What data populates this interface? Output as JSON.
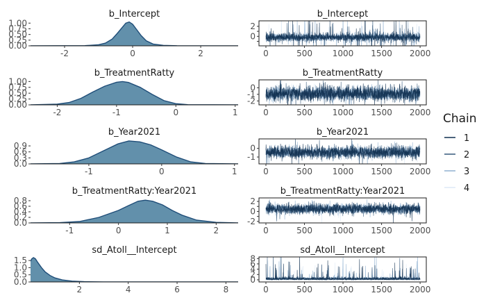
{
  "legend": {
    "title": "Chain",
    "items": [
      {
        "label": "1",
        "color": "#0f2f4f"
      },
      {
        "label": "2",
        "color": "#34587a"
      },
      {
        "label": "3",
        "color": "#8fb0d0"
      },
      {
        "label": "4",
        "color": "#dde9f5"
      }
    ]
  },
  "chart_data": [
    {
      "panel": "density",
      "type": "area",
      "title": "b_Intercept",
      "xlim": [
        -3.0,
        3.1
      ],
      "ylim": [
        0,
        1.1
      ],
      "xticks": [
        -2,
        0,
        2
      ],
      "yticks": [
        0.0,
        0.25,
        0.5,
        0.75,
        1.0
      ],
      "ytick_labels": [
        "0.00",
        "0.25",
        "0.50",
        "0.75",
        "1.00"
      ],
      "x": [
        -3.0,
        -1.4,
        -1.0,
        -0.8,
        -0.6,
        -0.45,
        -0.3,
        -0.2,
        -0.1,
        0.0,
        0.1,
        0.25,
        0.4,
        0.6,
        0.9,
        1.3,
        3.1
      ],
      "y": [
        0.0,
        0.01,
        0.05,
        0.12,
        0.3,
        0.55,
        0.82,
        1.0,
        1.05,
        0.95,
        0.75,
        0.45,
        0.22,
        0.08,
        0.02,
        0.005,
        0.0
      ],
      "fill": "#5a8aa6",
      "line_color": "#1f4d78"
    },
    {
      "panel": "trace",
      "type": "line",
      "title": "b_Intercept",
      "xlim": [
        -90,
        2080
      ],
      "ylim": [
        -1.9,
        3.1
      ],
      "xticks": [
        0,
        500,
        1000,
        1500,
        2000
      ],
      "yticks": [
        -1,
        0,
        1,
        2
      ],
      "ytick_labels": [
        "",
        "0",
        "",
        "2"
      ],
      "center": -0.2,
      "sd": 0.4,
      "spike_prob": 0.05,
      "spike_scale": 2.5,
      "iterations": 2000
    },
    {
      "panel": "density",
      "type": "area",
      "title": "b_TreatmentRatty",
      "xlim": [
        -2.45,
        1.05
      ],
      "ylim": [
        0,
        1.07
      ],
      "xticks": [
        -2,
        -1,
        0,
        1
      ],
      "yticks": [
        0.0,
        0.25,
        0.5,
        0.75,
        1.0
      ],
      "ytick_labels": [
        "0.00",
        "0.25",
        "0.50",
        "0.75",
        "1.00"
      ],
      "x": [
        -2.45,
        -2.0,
        -1.8,
        -1.6,
        -1.4,
        -1.2,
        -1.0,
        -0.9,
        -0.8,
        -0.6,
        -0.4,
        -0.2,
        0.0,
        0.2,
        1.05
      ],
      "y": [
        0.0,
        0.03,
        0.1,
        0.28,
        0.55,
        0.8,
        0.97,
        1.0,
        0.96,
        0.75,
        0.45,
        0.18,
        0.05,
        0.01,
        0.0
      ],
      "fill": "#5a8aa6",
      "line_color": "#1f4d78"
    },
    {
      "panel": "trace",
      "type": "line",
      "title": "b_TreatmentRatty",
      "xlim": [
        -90,
        2080
      ],
      "ylim": [
        -2.6,
        1.2
      ],
      "xticks": [
        0,
        500,
        1000,
        1500,
        2000
      ],
      "yticks": [
        -2,
        -1,
        0
      ],
      "ytick_labels": [
        "-2",
        "-1",
        "0"
      ],
      "center": -0.9,
      "sd": 0.55,
      "spike_prob": 0.01,
      "spike_scale": 1.2,
      "iterations": 2000
    },
    {
      "panel": "density",
      "type": "area",
      "title": "b_Year2021",
      "xlim": [
        -1.8,
        1.05
      ],
      "ylim": [
        0,
        1.25
      ],
      "xticks": [
        -1,
        0,
        1
      ],
      "yticks": [
        0.0,
        0.3,
        0.6,
        0.9
      ],
      "ytick_labels": [
        "0.0",
        "0.3",
        "0.6",
        "0.9"
      ],
      "x": [
        -1.8,
        -1.4,
        -1.2,
        -1.0,
        -0.8,
        -0.6,
        -0.45,
        -0.3,
        -0.15,
        0.0,
        0.2,
        0.4,
        0.6,
        1.05
      ],
      "y": [
        0.0,
        0.02,
        0.1,
        0.3,
        0.65,
        1.0,
        1.15,
        1.1,
        0.95,
        0.7,
        0.35,
        0.1,
        0.02,
        0.0
      ],
      "fill": "#5a8aa6",
      "line_color": "#1f4d78"
    },
    {
      "panel": "trace",
      "type": "line",
      "title": "b_Year2021",
      "xlim": [
        -90,
        2080
      ],
      "ylim": [
        -1.8,
        1.1
      ],
      "xticks": [
        0,
        500,
        1000,
        1500,
        2000
      ],
      "yticks": [
        -1,
        0
      ],
      "ytick_labels": [
        "-1",
        "0"
      ],
      "center": -0.45,
      "sd": 0.35,
      "spike_prob": 0.01,
      "spike_scale": 1.0,
      "iterations": 2000
    },
    {
      "panel": "density",
      "type": "area",
      "title": "b_TreatmentRatty:Year2021",
      "xlim": [
        -1.8,
        2.45
      ],
      "ylim": [
        0,
        0.9
      ],
      "xticks": [
        -1,
        0,
        1,
        2
      ],
      "yticks": [
        0.0,
        0.2,
        0.4,
        0.6,
        0.8
      ],
      "ytick_labels": [
        "0.0",
        "0.2",
        "0.4",
        "0.6",
        "0.8"
      ],
      "x": [
        -1.8,
        -1.2,
        -0.8,
        -0.4,
        0.0,
        0.2,
        0.4,
        0.55,
        0.7,
        0.9,
        1.1,
        1.3,
        1.6,
        2.0,
        2.45
      ],
      "y": [
        0.0,
        0.01,
        0.05,
        0.2,
        0.45,
        0.62,
        0.78,
        0.82,
        0.78,
        0.65,
        0.45,
        0.28,
        0.1,
        0.02,
        0.0
      ],
      "fill": "#5a8aa6",
      "line_color": "#1f4d78"
    },
    {
      "panel": "trace",
      "type": "line",
      "title": "b_TreatmentRatty:Year2021",
      "xlim": [
        -90,
        2080
      ],
      "ylim": [
        -2.3,
        2.7
      ],
      "xticks": [
        0,
        500,
        1000,
        1500,
        2000
      ],
      "yticks": [
        -2,
        -1,
        0,
        1,
        2
      ],
      "ytick_labels": [
        "-2",
        "",
        "0",
        "",
        "2"
      ],
      "center": 0.5,
      "sd": 0.5,
      "spike_prob": 0.01,
      "spike_scale": 1.0,
      "iterations": 2000
    },
    {
      "panel": "density",
      "type": "area",
      "title": "sd_Atoll__Intercept",
      "xlim": [
        0.0,
        8.5
      ],
      "ylim": [
        0,
        1.75
      ],
      "xticks": [
        2,
        4,
        6,
        8
      ],
      "yticks": [
        0.0,
        0.5,
        1.0,
        1.5
      ],
      "ytick_labels": [
        "0.0",
        "0.5",
        "1.0",
        "1.5"
      ],
      "x": [
        0.0,
        0.05,
        0.12,
        0.2,
        0.3,
        0.45,
        0.6,
        0.8,
        1.0,
        1.3,
        1.7,
        2.2,
        3.0,
        4.0,
        8.5
      ],
      "y": [
        1.45,
        1.62,
        1.7,
        1.62,
        1.35,
        1.0,
        0.7,
        0.45,
        0.28,
        0.14,
        0.06,
        0.02,
        0.006,
        0.001,
        0.0
      ],
      "fill": "#5a8aa6",
      "line_color": "#1f4d78"
    },
    {
      "panel": "trace",
      "type": "line",
      "title": "sd_Atoll__Intercept",
      "xlim": [
        -90,
        2080
      ],
      "ylim": [
        -0.8,
        8.6
      ],
      "xticks": [
        0,
        500,
        1000,
        1500,
        2000
      ],
      "yticks": [
        0,
        2,
        4,
        6,
        8
      ],
      "ytick_labels": [
        "0",
        "2",
        "4",
        "6",
        "8"
      ],
      "center": 0.3,
      "sd": 0.35,
      "spike_prob": 0.04,
      "spike_scale": 4.0,
      "positive": true,
      "iterations": 2000
    }
  ]
}
